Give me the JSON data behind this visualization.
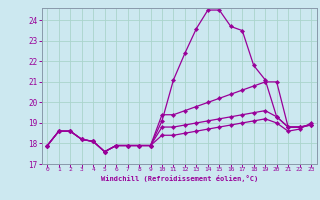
{
  "xlabel": "Windchill (Refroidissement éolien,°C)",
  "bg_color": "#cce8f0",
  "grid_color": "#aad4cc",
  "line_color": "#990099",
  "spine_color": "#8899aa",
  "xlim": [
    -0.5,
    23.5
  ],
  "ylim": [
    17,
    24.6
  ],
  "yticks": [
    17,
    18,
    19,
    20,
    21,
    22,
    23,
    24
  ],
  "xticks": [
    0,
    1,
    2,
    3,
    4,
    5,
    6,
    7,
    8,
    9,
    10,
    11,
    12,
    13,
    14,
    15,
    16,
    17,
    18,
    19,
    20,
    21,
    22,
    23
  ],
  "line1": [
    17.9,
    18.6,
    18.6,
    18.2,
    18.1,
    17.6,
    17.9,
    17.9,
    17.9,
    17.9,
    19.1,
    21.1,
    22.4,
    23.6,
    24.5,
    24.5,
    23.7,
    23.5,
    21.8,
    21.1,
    19.3,
    18.8,
    18.8,
    18.9
  ],
  "line2": [
    17.9,
    18.6,
    18.6,
    18.2,
    18.1,
    17.6,
    17.9,
    17.9,
    17.9,
    17.9,
    19.4,
    19.4,
    19.6,
    19.8,
    20.0,
    20.2,
    20.4,
    20.6,
    20.8,
    21.0,
    21.0,
    18.8,
    18.8,
    18.9
  ],
  "line3": [
    17.9,
    18.6,
    18.6,
    18.2,
    18.1,
    17.6,
    17.9,
    17.9,
    17.9,
    17.9,
    18.8,
    18.8,
    18.9,
    19.0,
    19.1,
    19.2,
    19.3,
    19.4,
    19.5,
    19.6,
    19.3,
    18.8,
    18.8,
    18.9
  ],
  "line4": [
    17.9,
    18.6,
    18.6,
    18.2,
    18.1,
    17.6,
    17.9,
    17.9,
    17.9,
    17.9,
    18.4,
    18.4,
    18.5,
    18.6,
    18.7,
    18.8,
    18.9,
    19.0,
    19.1,
    19.2,
    19.0,
    18.6,
    18.7,
    19.0
  ]
}
